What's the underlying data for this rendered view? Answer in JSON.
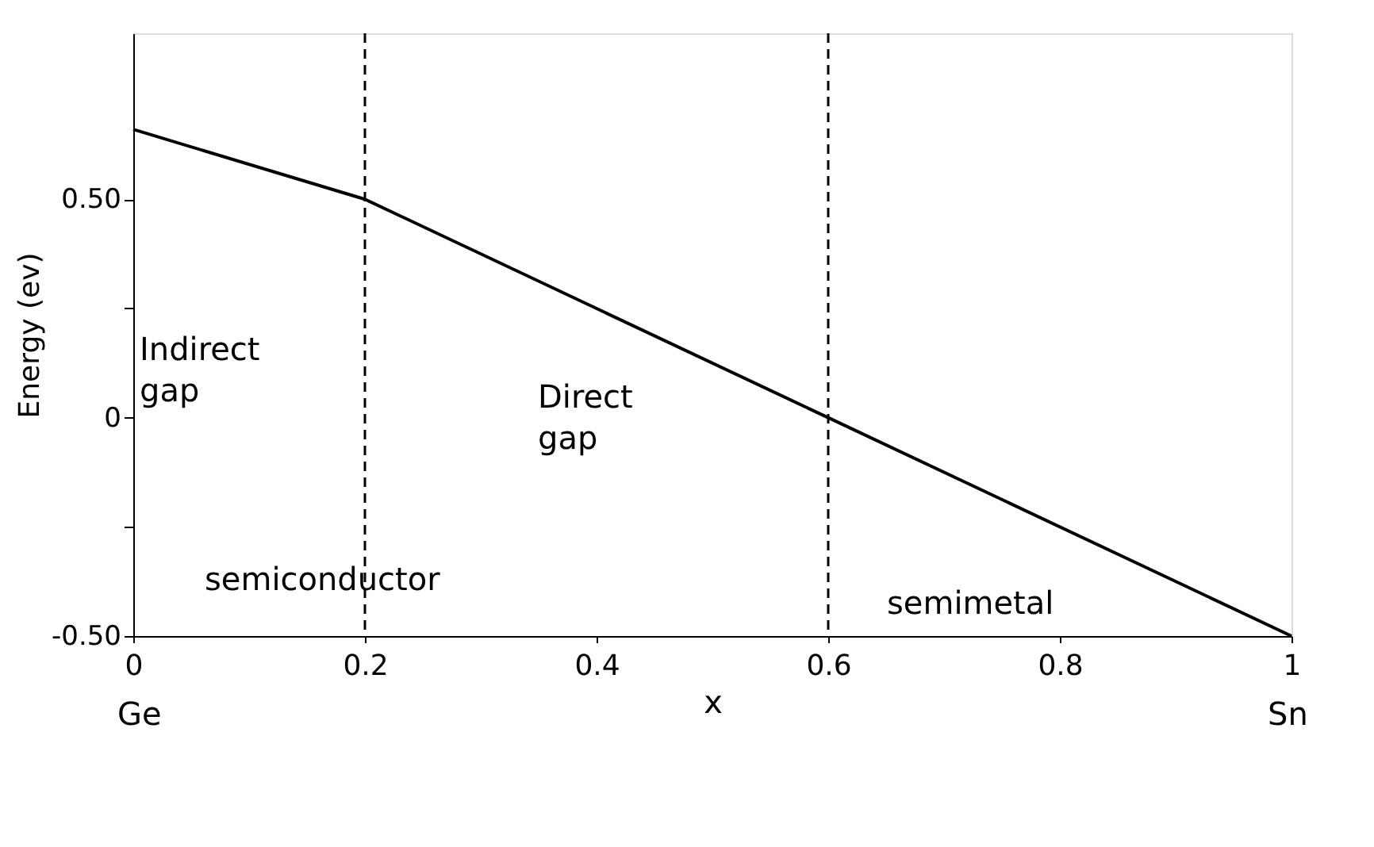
{
  "chart_data": {
    "type": "line",
    "xlabel": "x",
    "ylabel": "Energy (ev)",
    "x": [
      0,
      0.2,
      0.6,
      1
    ],
    "series": [
      {
        "color": "#000000",
        "values": [
          0.66,
          0.5,
          0,
          -0.5
        ]
      }
    ],
    "xlim": [
      0,
      1
    ],
    "ylim": [
      -0.5,
      0.88
    ],
    "xticks": [
      0,
      0.2,
      0.4,
      0.6,
      0.8,
      1
    ],
    "yticks": [
      {
        "value": -0.5,
        "label": "-0.50"
      },
      {
        "value": -0.25,
        "label": null
      },
      0,
      {
        "value": 0.25,
        "label": null
      },
      {
        "value": 0.5,
        "label": "0.50"
      }
    ],
    "ref_lines": [
      {
        "axis": "x",
        "value": 0.2,
        "line_style": "dashed",
        "color": "#000000"
      },
      {
        "axis": "x",
        "value": 0.6,
        "line_style": "dashed",
        "color": "#000000"
      }
    ],
    "annotations": [
      "Indirect\ngap",
      "Direct\ngap",
      "semiconductor",
      "semimetal",
      "Ge",
      "Sn"
    ],
    "grid": false,
    "marker": "none",
    "line_style": "solid"
  }
}
